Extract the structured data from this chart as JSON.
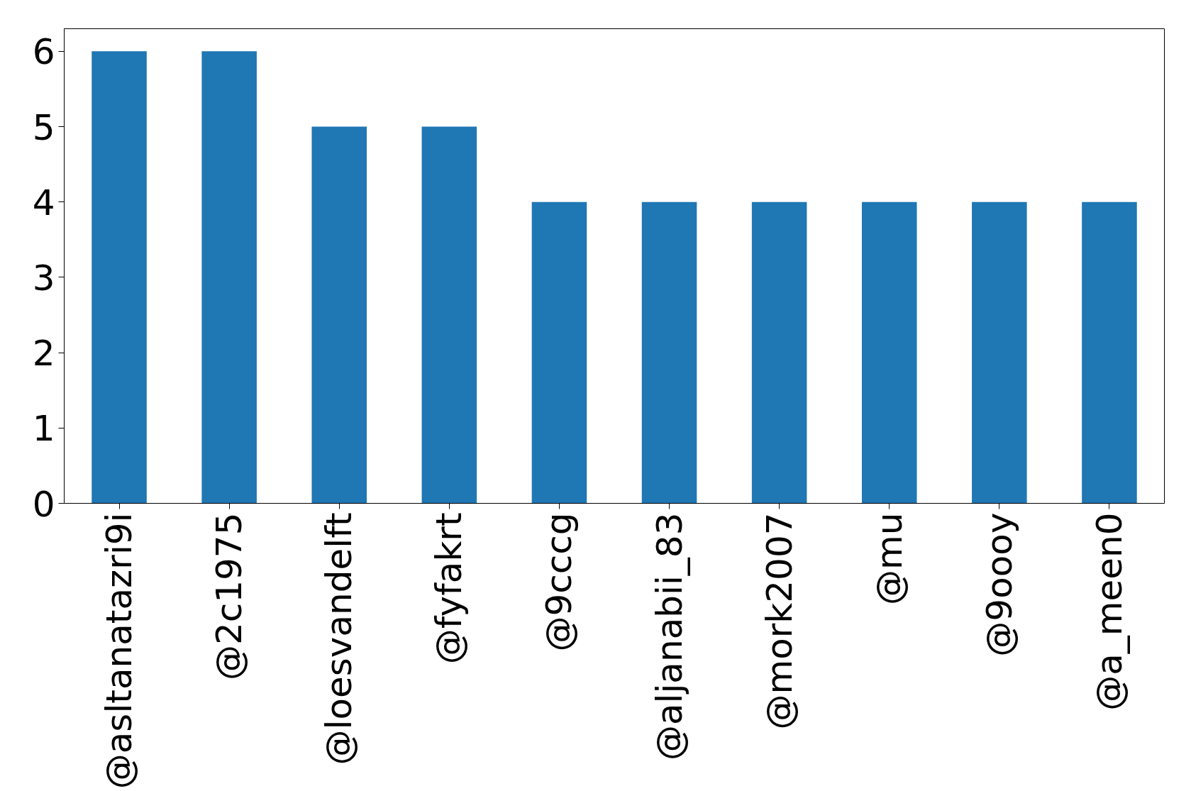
{
  "chart_data": {
    "type": "bar",
    "categories": [
      "@asltanatazri9i",
      "@2c1975",
      "@loesvandelft",
      "@fyfakrt",
      "@9cccg",
      "@aljanabii_83",
      "@mork2007",
      "@mu",
      "@9oooy",
      "@a_meen0"
    ],
    "values": [
      6,
      6,
      5,
      5,
      4,
      4,
      4,
      4,
      4,
      4
    ],
    "color": "#1f77b4",
    "ylim": [
      0,
      6.3
    ],
    "yticks": [
      0,
      1,
      2,
      3,
      4,
      5,
      6
    ],
    "grid": false
  }
}
